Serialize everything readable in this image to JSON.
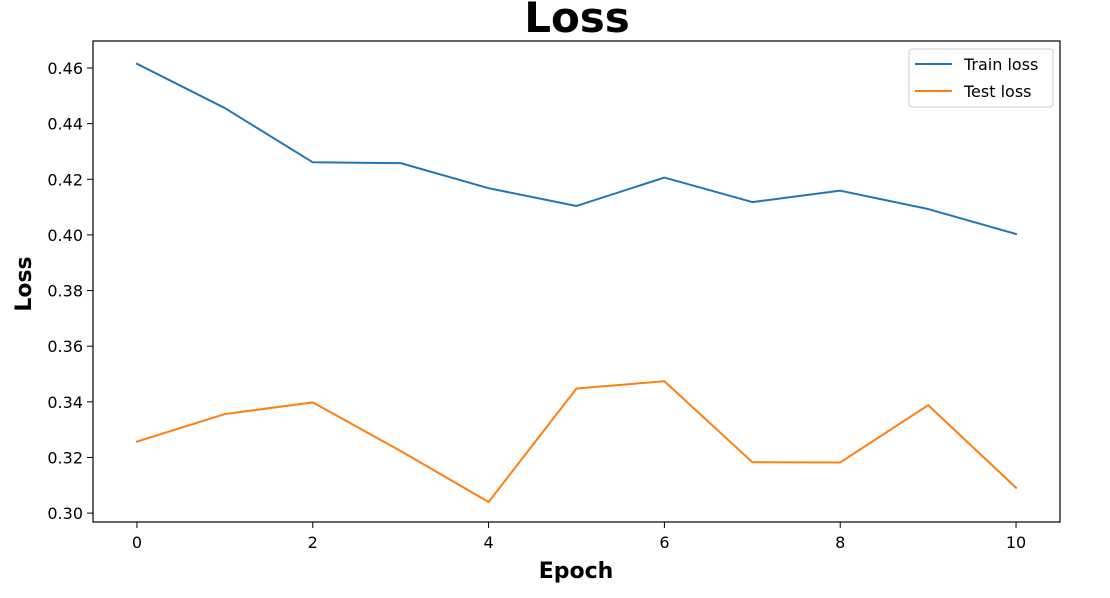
{
  "chart_data": {
    "type": "line",
    "title": "Loss",
    "xlabel": "Epoch",
    "ylabel": "Loss",
    "x": [
      0,
      1,
      2,
      3,
      4,
      5,
      6,
      7,
      8,
      9,
      10
    ],
    "xlim": [
      -0.5,
      10.5
    ],
    "ylim": [
      0.2968,
      0.4697
    ],
    "xticks": [
      0,
      2,
      4,
      6,
      8,
      10
    ],
    "xtick_labels": [
      "0",
      "2",
      "4",
      "6",
      "8",
      "10"
    ],
    "yticks": [
      0.3,
      0.32,
      0.34,
      0.36,
      0.38,
      0.4,
      0.42,
      0.44,
      0.46
    ],
    "ytick_labels": [
      "0.30",
      "0.32",
      "0.34",
      "0.36",
      "0.38",
      "0.40",
      "0.42",
      "0.44",
      "0.46"
    ],
    "grid": false,
    "legend_position": "top-right",
    "series": [
      {
        "name": "Train loss",
        "color": "#1f77b4",
        "values": [
          0.4615,
          0.4456,
          0.4261,
          0.4258,
          0.4168,
          0.4104,
          0.4206,
          0.4118,
          0.4159,
          0.4093,
          0.4003
        ]
      },
      {
        "name": "Test loss",
        "color": "#ff7f0e",
        "values": [
          0.3257,
          0.3356,
          0.3398,
          0.3223,
          0.304,
          0.3448,
          0.3474,
          0.3183,
          0.3182,
          0.3388,
          0.3091
        ]
      }
    ]
  }
}
